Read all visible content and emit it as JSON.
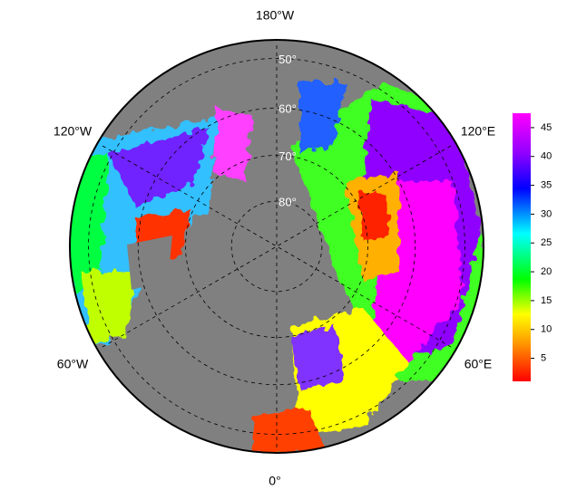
{
  "map": {
    "meridian_labels": [
      "180°W",
      "120°W",
      "120°E",
      "60°W",
      "60°E",
      "0°"
    ],
    "latitudes": [
      50,
      60,
      70,
      80
    ],
    "latitude_labels": [
      "50°",
      "60°",
      "70°",
      "80°"
    ],
    "colorbar": {
      "clim": [
        1,
        47.5
      ],
      "ticks": [
        5,
        10,
        15,
        20,
        25,
        30,
        35,
        40,
        45
      ]
    }
  }
}
